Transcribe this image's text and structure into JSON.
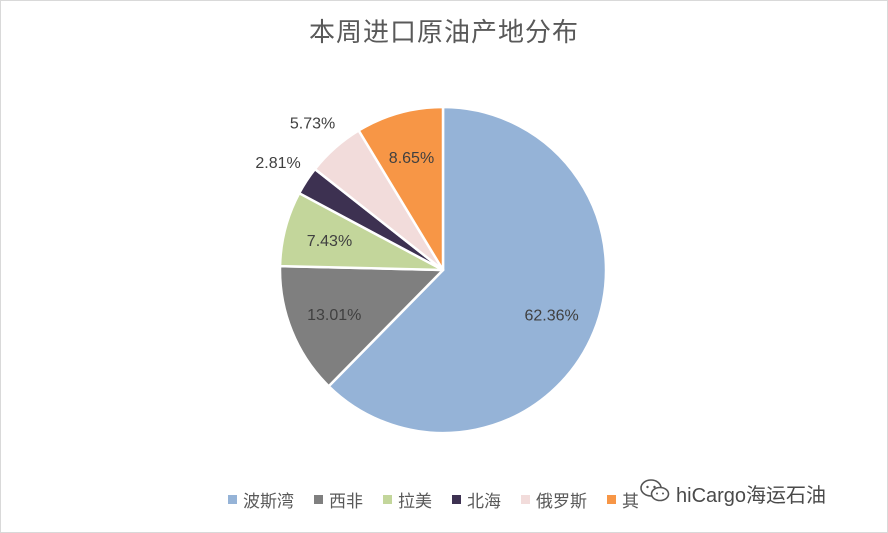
{
  "chart_data": {
    "type": "pie",
    "title": "本周进口原油产地分布",
    "slices": [
      {
        "name": "波斯湾",
        "value": 62.36,
        "label": "62.36%",
        "color": "#95b3d7"
      },
      {
        "name": "西非",
        "value": 13.01,
        "label": "13.01%",
        "color": "#7f7f7f"
      },
      {
        "name": "拉美",
        "value": 7.43,
        "label": "7.43%",
        "color": "#c3d69b"
      },
      {
        "name": "北海",
        "value": 2.81,
        "label": "2.81%",
        "color": "#3d3151"
      },
      {
        "name": "俄罗斯",
        "value": 5.73,
        "label": "5.73%",
        "color": "#f2dcdb"
      },
      {
        "name": "其他",
        "value": 8.65,
        "label": "8.65%",
        "color": "#f79646"
      }
    ],
    "legend_position": "bottom"
  },
  "watermark": {
    "icon": "wechat-icon",
    "text": "hiCargo海运石油"
  }
}
